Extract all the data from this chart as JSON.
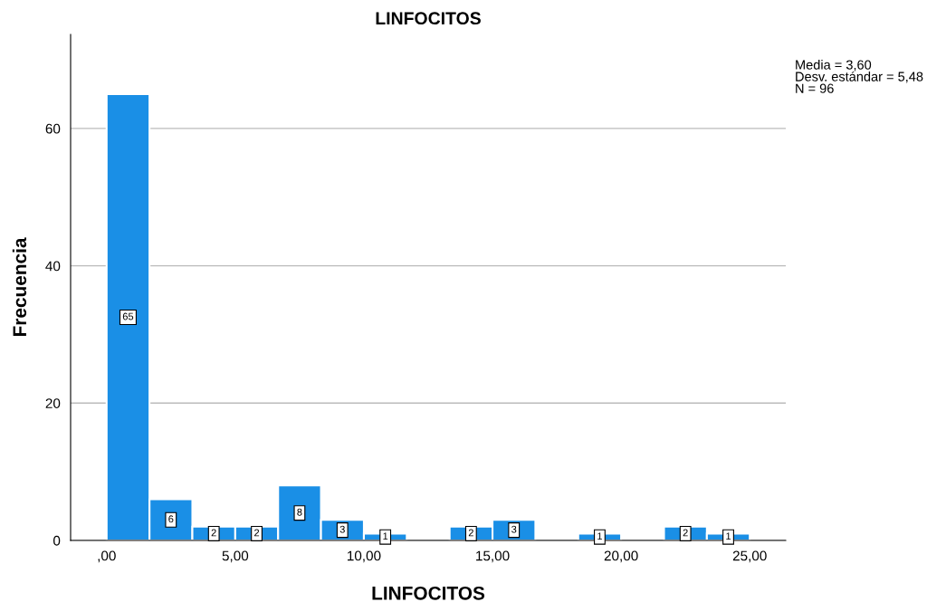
{
  "chart_data": {
    "type": "histogram",
    "title": "LINFOCITOS",
    "xlabel": "LINFOCITOS",
    "ylabel": "Frecuencia",
    "bins": [
      0,
      1.667,
      3.333,
      5,
      6.667,
      8.333,
      10,
      11.667,
      13.333,
      15,
      16.667,
      18.333,
      20,
      21.667,
      23.333,
      25
    ],
    "values": [
      65,
      6,
      2,
      2,
      8,
      3,
      1,
      0,
      2,
      3,
      0,
      1,
      0,
      2,
      1
    ],
    "value_labels": [
      "65",
      "6",
      "2",
      "2",
      "8",
      "3",
      "1",
      null,
      "2",
      "3",
      null,
      "1",
      null,
      "2",
      "1"
    ],
    "color": "#1a8fe6",
    "xlim": [
      -1.4,
      26.4
    ],
    "ylim": [
      0,
      73.7
    ],
    "xticks": [
      {
        "value": 0,
        "label": ",00"
      },
      {
        "value": 5,
        "label": "5,00"
      },
      {
        "value": 10,
        "label": "10,00"
      },
      {
        "value": 15,
        "label": "15,00"
      },
      {
        "value": 20,
        "label": "20,00"
      },
      {
        "value": 25,
        "label": "25,00"
      }
    ],
    "yticks": [
      0,
      20,
      40,
      60
    ],
    "grid": "y",
    "legend": false,
    "annotations": [
      "Media = 3,60\nDesv. estándar = 5,48\nN = 96"
    ]
  }
}
